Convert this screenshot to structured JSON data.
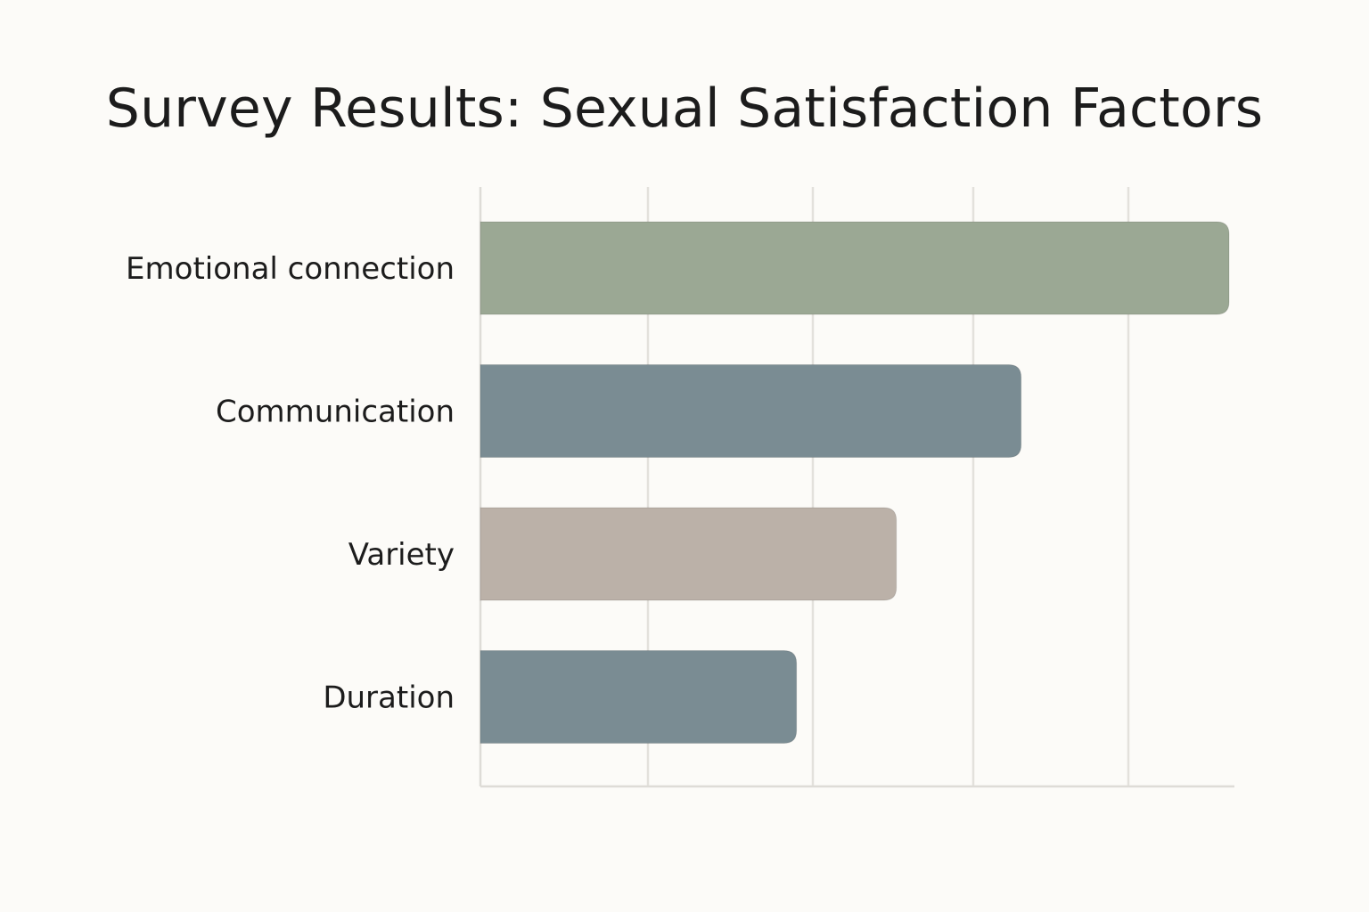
{
  "chart_data": {
    "type": "bar",
    "orientation": "horizontal",
    "title": "Survey Results: Sexual Satisfaction Factors",
    "xlabel": "",
    "ylabel": "",
    "categories": [
      "Emotional connection",
      "Communication",
      "Variety",
      "Duration"
    ],
    "values": [
      90,
      65,
      50,
      38
    ],
    "xlim": [
      0,
      90
    ],
    "grid": "vertical",
    "legend": "none",
    "bar_colors": [
      "#9ba894",
      "#7a8c93",
      "#bbb1a8",
      "#7a8c93"
    ],
    "grid_color": "#e3e1dc",
    "axis_color": "#dedcd7"
  }
}
